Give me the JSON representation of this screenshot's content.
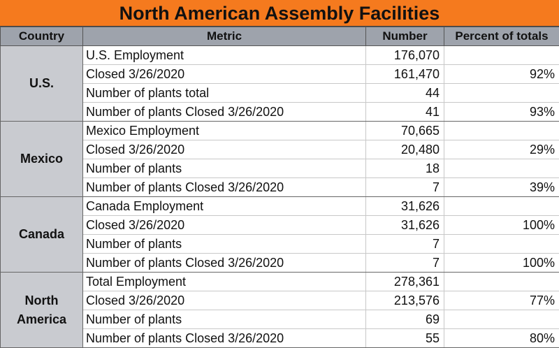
{
  "title": "North American Assembly Facilities",
  "headers": {
    "country": "Country",
    "metric": "Metric",
    "number": "Number",
    "percent": "Percent of totals"
  },
  "groups": [
    {
      "country": "U.S.",
      "rows": [
        {
          "metric": "U.S. Employment",
          "number": "176,070",
          "percent": ""
        },
        {
          "metric": "Closed 3/26/2020",
          "number": "161,470",
          "percent": "92%"
        },
        {
          "metric": "Number of plants total",
          "number": "44",
          "percent": ""
        },
        {
          "metric": "Number of plants Closed 3/26/2020",
          "number": "41",
          "percent": "93%"
        }
      ]
    },
    {
      "country": "Mexico",
      "rows": [
        {
          "metric": "Mexico Employment",
          "number": "70,665",
          "percent": ""
        },
        {
          "metric": "Closed 3/26/2020",
          "number": "20,480",
          "percent": "29%"
        },
        {
          "metric": "Number of plants",
          "number": "18",
          "percent": ""
        },
        {
          "metric": "Number of plants Closed 3/26/2020",
          "number": "7",
          "percent": "39%"
        }
      ]
    },
    {
      "country": "Canada",
      "rows": [
        {
          "metric": "Canada Employment",
          "number": "31,626",
          "percent": ""
        },
        {
          "metric": "Closed 3/26/2020",
          "number": "31,626",
          "percent": "100%"
        },
        {
          "metric": "Number of plants",
          "number": "7",
          "percent": ""
        },
        {
          "metric": "Number of plants Closed 3/26/2020",
          "number": "7",
          "percent": "100%"
        }
      ]
    },
    {
      "country": "North America",
      "rows": [
        {
          "metric": "Total Employment",
          "number": "278,361",
          "percent": ""
        },
        {
          "metric": "Closed 3/26/2020",
          "number": "213,576",
          "percent": "77%"
        },
        {
          "metric": "Number of plants",
          "number": "69",
          "percent": ""
        },
        {
          "metric": "Number of plants Closed 3/26/2020",
          "number": "55",
          "percent": "80%"
        }
      ]
    }
  ]
}
